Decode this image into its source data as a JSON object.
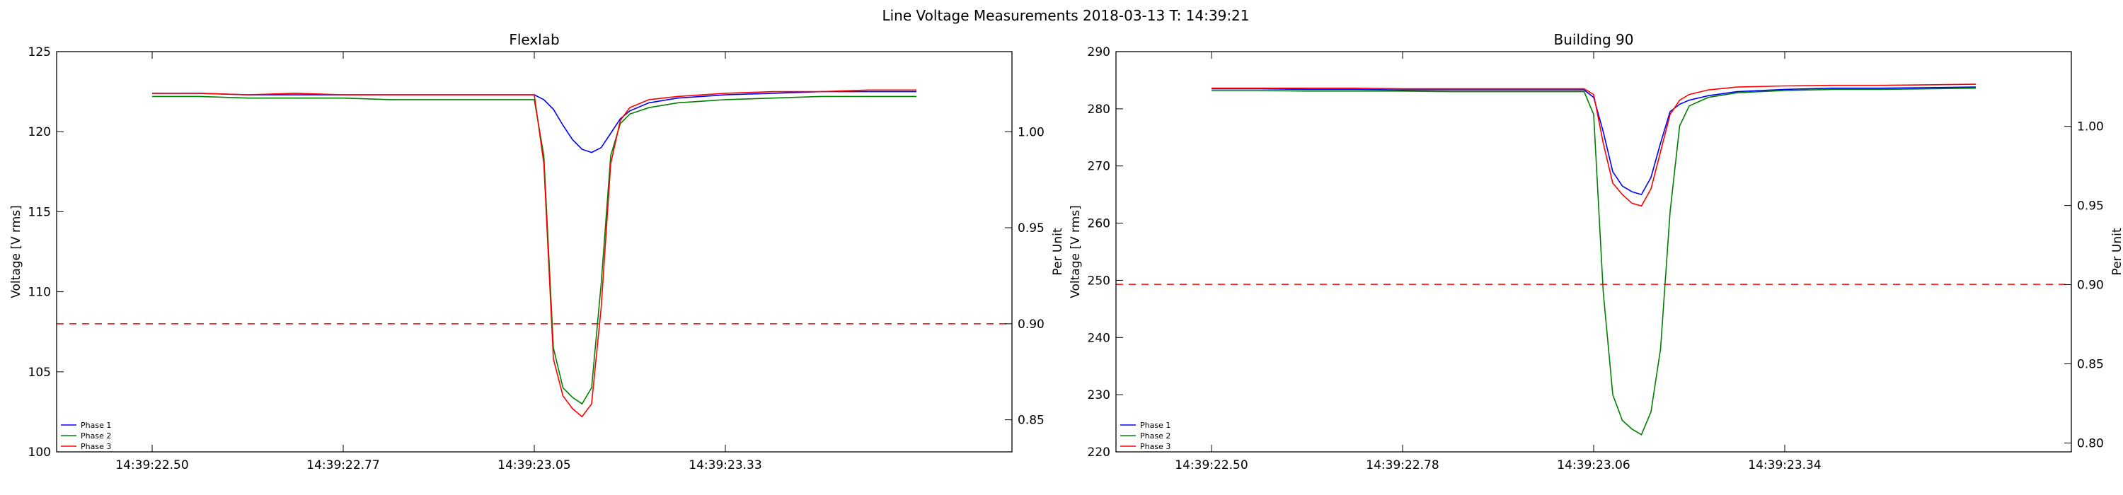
{
  "figure": {
    "suptitle": "Line Voltage Measurements 2018-03-13 T: 14:39:21"
  },
  "chart_data": [
    {
      "type": "line",
      "title": "Flexlab",
      "xlabel": "",
      "ylabel": "Voltage [V rms]",
      "ylabel_right": "Per Unit",
      "ylim": [
        100,
        125
      ],
      "yticks": [
        100,
        105,
        110,
        115,
        120,
        125
      ],
      "right_ylim": [
        0.8333,
        1.0417
      ],
      "right_yticks": [
        0.85,
        0.9,
        0.95,
        1.0
      ],
      "right_ytick_labels": [
        "0.85",
        "0.90",
        "0.95",
        "1.00"
      ],
      "xlim": [
        -0.1,
        0.9
      ],
      "x_tick_values": [
        0,
        0.2,
        0.4,
        0.6
      ],
      "x_tick_labels": [
        "14:39:22.50",
        "14:39:22.77",
        "14:39:23.05",
        "14:39:23.33"
      ],
      "threshold": {
        "value": 108,
        "color": "#ff0000",
        "style": "dashed"
      },
      "legend": {
        "position": "lower-left"
      },
      "x": [
        0,
        0.05,
        0.1,
        0.15,
        0.2,
        0.25,
        0.3,
        0.35,
        0.4,
        0.41,
        0.42,
        0.43,
        0.44,
        0.45,
        0.46,
        0.47,
        0.48,
        0.49,
        0.5,
        0.52,
        0.55,
        0.6,
        0.65,
        0.7,
        0.75,
        0.8
      ],
      "series": [
        {
          "name": "Phase 1",
          "color": "#0000ff",
          "values": [
            122.4,
            122.4,
            122.3,
            122.3,
            122.3,
            122.3,
            122.3,
            122.3,
            122.3,
            122.0,
            121.4,
            120.4,
            119.5,
            118.9,
            118.7,
            119.0,
            119.9,
            120.8,
            121.3,
            121.8,
            122.1,
            122.3,
            122.4,
            122.5,
            122.5,
            122.5
          ]
        },
        {
          "name": "Phase 2",
          "color": "#008000",
          "values": [
            122.2,
            122.2,
            122.1,
            122.1,
            122.1,
            122.0,
            122.0,
            122.0,
            122.0,
            118.5,
            106.5,
            104.0,
            103.4,
            103.0,
            104.0,
            110.5,
            118.5,
            120.5,
            121.1,
            121.5,
            121.8,
            122.0,
            122.1,
            122.2,
            122.2,
            122.2
          ]
        },
        {
          "name": "Phase 3",
          "color": "#ff0000",
          "values": [
            122.4,
            122.4,
            122.3,
            122.4,
            122.3,
            122.3,
            122.3,
            122.3,
            122.3,
            118.0,
            105.8,
            103.5,
            102.7,
            102.2,
            103.0,
            109.0,
            118.0,
            120.7,
            121.5,
            122.0,
            122.2,
            122.4,
            122.5,
            122.5,
            122.6,
            122.6
          ]
        }
      ]
    },
    {
      "type": "line",
      "title": "Building 90",
      "xlabel": "",
      "ylabel": "Voltage [V rms]",
      "ylabel_right": "Per Unit",
      "ylim": [
        220,
        290
      ],
      "yticks": [
        220,
        230,
        240,
        250,
        260,
        270,
        280,
        290
      ],
      "right_ylim": [
        0.7944,
        1.0472
      ],
      "right_yticks": [
        0.8,
        0.85,
        0.9,
        0.95,
        1.0
      ],
      "right_ytick_labels": [
        "0.80",
        "0.85",
        "0.90",
        "0.95",
        "1.00"
      ],
      "xlim": [
        -0.1,
        0.9
      ],
      "x_tick_values": [
        0,
        0.2,
        0.4,
        0.6
      ],
      "x_tick_labels": [
        "14:39:22.50",
        "14:39:22.78",
        "14:39:23.06",
        "14:39:23.34"
      ],
      "threshold": {
        "value": 249.3,
        "color": "#ff0000",
        "style": "dashed"
      },
      "legend": {
        "position": "lower-left"
      },
      "x": [
        0,
        0.05,
        0.1,
        0.15,
        0.2,
        0.25,
        0.3,
        0.35,
        0.39,
        0.4,
        0.41,
        0.42,
        0.43,
        0.44,
        0.45,
        0.46,
        0.47,
        0.48,
        0.49,
        0.5,
        0.52,
        0.55,
        0.6,
        0.65,
        0.7,
        0.75,
        0.8
      ],
      "series": [
        {
          "name": "Phase 1",
          "color": "#0000ff",
          "values": [
            283.5,
            283.5,
            283.4,
            283.4,
            283.3,
            283.3,
            283.3,
            283.3,
            283.3,
            282.0,
            276.0,
            269.0,
            266.5,
            265.5,
            265.0,
            268.0,
            274.0,
            279.5,
            280.8,
            281.5,
            282.3,
            283.0,
            283.4,
            283.6,
            283.6,
            283.7,
            283.8
          ]
        },
        {
          "name": "Phase 2",
          "color": "#008000",
          "values": [
            283.2,
            283.2,
            283.1,
            283.1,
            283.1,
            283.0,
            283.0,
            283.0,
            283.0,
            279.0,
            248.0,
            230.0,
            225.5,
            224.0,
            223.0,
            227.0,
            238.0,
            262.0,
            277.0,
            280.5,
            282.0,
            282.8,
            283.2,
            283.4,
            283.4,
            283.5,
            283.6
          ]
        },
        {
          "name": "Phase 3",
          "color": "#ff0000",
          "values": [
            283.6,
            283.6,
            283.6,
            283.6,
            283.5,
            283.5,
            283.5,
            283.5,
            283.5,
            282.5,
            274.0,
            267.0,
            265.0,
            263.5,
            263.0,
            266.0,
            272.5,
            279.0,
            281.5,
            282.5,
            283.3,
            283.8,
            284.0,
            284.1,
            284.1,
            284.2,
            284.3
          ]
        }
      ]
    }
  ]
}
